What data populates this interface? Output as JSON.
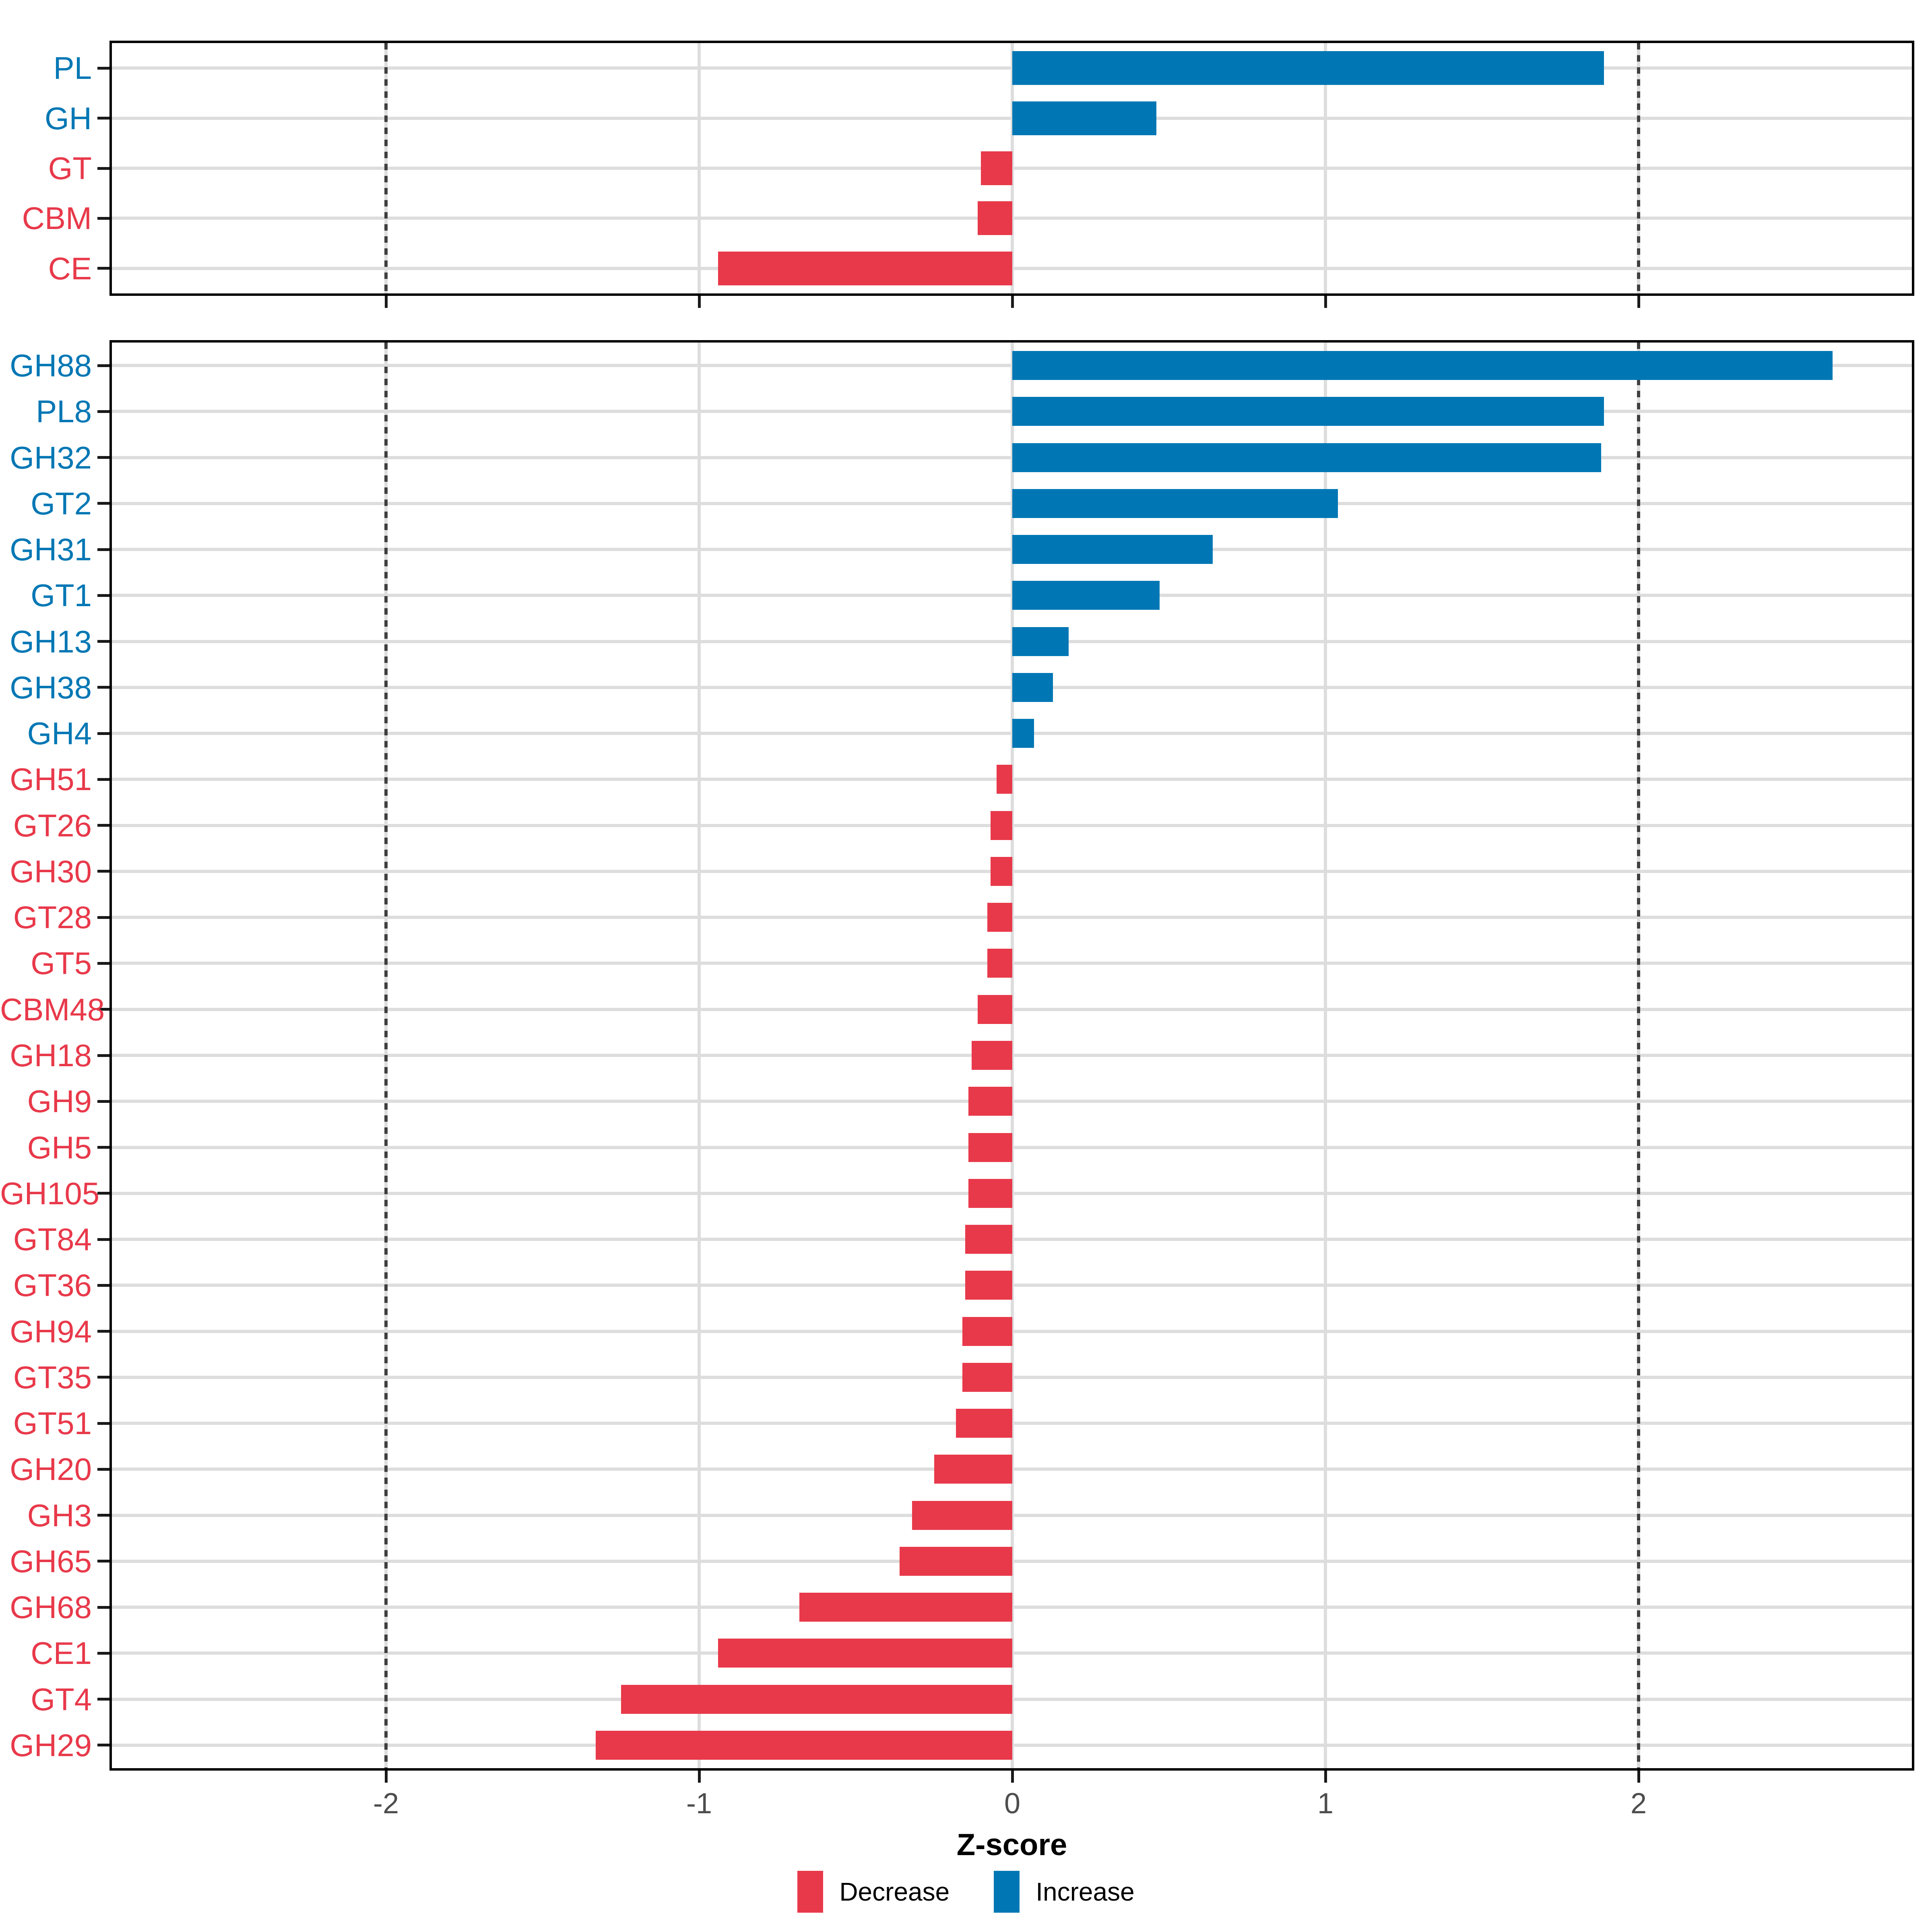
{
  "figure": {
    "xlabel": "Z-score",
    "x_ticks": [
      "-2",
      "-1",
      "0",
      "1",
      "2"
    ],
    "x_tick_values": [
      -2,
      -1,
      0,
      1,
      2
    ],
    "xlim": [
      -2.875,
      2.87
    ],
    "dashed_guides_at": [
      -2,
      2
    ],
    "grid": "on",
    "colors": {
      "increase": "#0077B4",
      "decrease": "#E8394A",
      "gridline": "#DDDDDD",
      "dashed_guide": "#3F3F3F",
      "tick_label": "#4D4D4D",
      "panel_border": "#000000"
    },
    "legend": {
      "position": "bottom-center",
      "items": [
        {
          "label": "Decrease",
          "key": "decrease",
          "color": "#E8394A"
        },
        {
          "label": "Increase",
          "key": "increase",
          "color": "#0077B4"
        }
      ]
    }
  },
  "chart_data": [
    {
      "type": "bar",
      "orientation": "horizontal",
      "panel": "top",
      "title": "",
      "xlabel": "Z-score",
      "categories": [
        "PL",
        "GH",
        "GT",
        "CBM",
        "CE"
      ],
      "values": [
        1.89,
        0.46,
        -0.1,
        -0.11,
        -0.94
      ],
      "directions": [
        "increase",
        "increase",
        "decrease",
        "decrease",
        "decrease"
      ]
    },
    {
      "type": "bar",
      "orientation": "horizontal",
      "panel": "bottom",
      "title": "",
      "xlabel": "Z-score",
      "categories": [
        "GH88",
        "PL8",
        "GH32",
        "GT2",
        "GH31",
        "GT1",
        "GH13",
        "GH38",
        "GH4",
        "GH51",
        "GT26",
        "GH30",
        "GT28",
        "GT5",
        "CBM48",
        "GH18",
        "GH9",
        "GH5",
        "GH105",
        "GT84",
        "GT36",
        "GH94",
        "GT35",
        "GT51",
        "GH20",
        "GH3",
        "GH65",
        "GH68",
        "CE1",
        "GT4",
        "GH29"
      ],
      "values": [
        2.62,
        1.89,
        1.88,
        1.04,
        0.64,
        0.47,
        0.18,
        0.13,
        0.07,
        -0.05,
        -0.07,
        -0.07,
        -0.08,
        -0.08,
        -0.11,
        -0.13,
        -0.14,
        -0.14,
        -0.14,
        -0.15,
        -0.15,
        -0.16,
        -0.16,
        -0.18,
        -0.25,
        -0.32,
        -0.36,
        -0.68,
        -0.94,
        -1.25,
        -1.33
      ],
      "directions": [
        "increase",
        "increase",
        "increase",
        "increase",
        "increase",
        "increase",
        "increase",
        "increase",
        "increase",
        "decrease",
        "decrease",
        "decrease",
        "decrease",
        "decrease",
        "decrease",
        "decrease",
        "decrease",
        "decrease",
        "decrease",
        "decrease",
        "decrease",
        "decrease",
        "decrease",
        "decrease",
        "decrease",
        "decrease",
        "decrease",
        "decrease",
        "decrease",
        "decrease",
        "decrease"
      ]
    }
  ]
}
